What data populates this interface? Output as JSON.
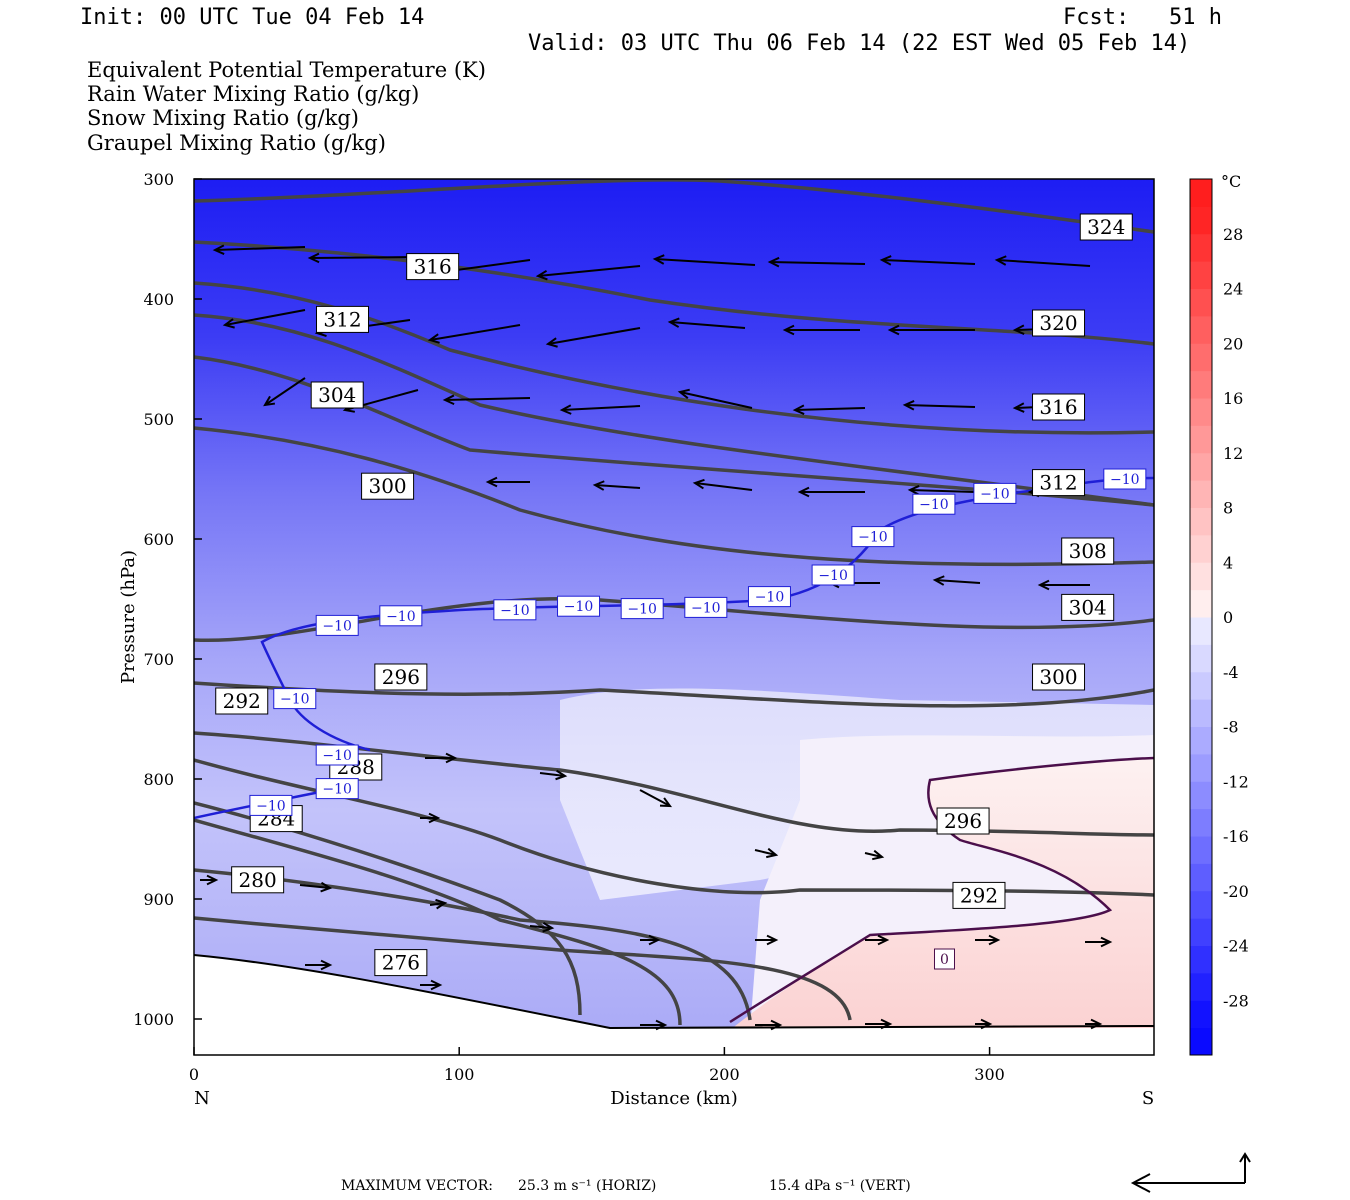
{
  "header": {
    "init": "Init: 00 UTC Tue 04 Feb 14",
    "fcst": "Fcst:   51 h",
    "valid": "Valid: 03 UTC Thu 06 Feb 14 (22 EST Wed 05 Feb 14)"
  },
  "legend": [
    {
      "text": "Equivalent Potential Temperature (K)",
      "color": "#555555"
    },
    {
      "text": "Rain Water Mixing Ratio (g/kg)",
      "color": "#007a00"
    },
    {
      "text": "Snow Mixing Ratio (g/kg)",
      "color": "#f29a5a"
    },
    {
      "text": "Graupel Mixing Ratio (g/kg)",
      "color": "#ee82ee"
    }
  ],
  "footer": {
    "label": "MAXIMUM VECTOR:",
    "horiz": "25.3 m s⁻¹ (HORIZ)",
    "vert": "15.4 dPa s⁻¹ (VERT)"
  },
  "chart_data": {
    "type": "cross-section",
    "xlabel": "Distance (km)",
    "ylabel": "Pressure (hPa)",
    "xlim": [
      0,
      362
    ],
    "ylim": [
      1030,
      300
    ],
    "x_ticks": [
      0,
      100,
      200,
      300
    ],
    "y_ticks": [
      300,
      400,
      500,
      600,
      700,
      800,
      900,
      1000
    ],
    "left_endpoint_label": "N",
    "right_endpoint_label": "S",
    "colorbar": {
      "unit": "°C",
      "labels": [
        28,
        24,
        20,
        16,
        12,
        8,
        4,
        0,
        -4,
        -8,
        -12,
        -16,
        -20,
        -24,
        -28
      ],
      "range": [
        -32,
        32
      ]
    },
    "theta_e_labels": [
      {
        "v": "324",
        "x": 344,
        "p": 340
      },
      {
        "v": "320",
        "x": 326,
        "p": 420
      },
      {
        "v": "316",
        "x": 90,
        "p": 373
      },
      {
        "v": "316",
        "x": 326,
        "p": 490
      },
      {
        "v": "312",
        "x": 56,
        "p": 417
      },
      {
        "v": "312",
        "x": 326,
        "p": 553
      },
      {
        "v": "308",
        "x": 337,
        "p": 610
      },
      {
        "v": "304",
        "x": 54,
        "p": 480
      },
      {
        "v": "304",
        "x": 337,
        "p": 657
      },
      {
        "v": "300",
        "x": 73,
        "p": 556
      },
      {
        "v": "300",
        "x": 326,
        "p": 715
      },
      {
        "v": "296",
        "x": 78,
        "p": 715
      },
      {
        "v": "296",
        "x": 290,
        "p": 835
      },
      {
        "v": "292",
        "x": 18,
        "p": 735
      },
      {
        "v": "292",
        "x": 296,
        "p": 897
      },
      {
        "v": "288",
        "x": 61,
        "p": 790
      },
      {
        "v": "284",
        "x": 31,
        "p": 833
      },
      {
        "v": "280",
        "x": 24,
        "p": 884
      },
      {
        "v": "276",
        "x": 78,
        "p": 953
      }
    ],
    "isotherm_labels": [
      {
        "v": "−10",
        "x": 54,
        "p": 672
      },
      {
        "v": "−10",
        "x": 78,
        "p": 664
      },
      {
        "v": "−10",
        "x": 121,
        "p": 659
      },
      {
        "v": "−10",
        "x": 145,
        "p": 656
      },
      {
        "v": "−10",
        "x": 169,
        "p": 658
      },
      {
        "v": "−10",
        "x": 193,
        "p": 657
      },
      {
        "v": "−10",
        "x": 217,
        "p": 648
      },
      {
        "v": "−10",
        "x": 241,
        "p": 630
      },
      {
        "v": "−10",
        "x": 256,
        "p": 598
      },
      {
        "v": "−10",
        "x": 279,
        "p": 571
      },
      {
        "v": "−10",
        "x": 302,
        "p": 562
      },
      {
        "v": "−10",
        "x": 351,
        "p": 550
      },
      {
        "v": "−10",
        "x": 38,
        "p": 733
      },
      {
        "v": "−10",
        "x": 54,
        "p": 780
      },
      {
        "v": "−10",
        "x": 54,
        "p": 808
      },
      {
        "v": "−10",
        "x": 29,
        "p": 822
      },
      {
        "v": "0",
        "x": 283,
        "p": 950
      }
    ]
  }
}
